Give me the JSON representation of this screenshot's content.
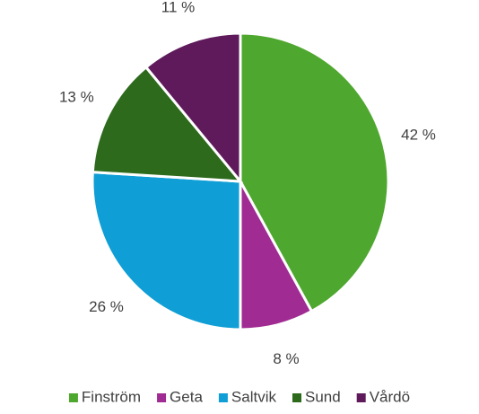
{
  "chart_data": {
    "type": "pie",
    "categories": [
      "Finström",
      "Geta",
      "Saltvik",
      "Sund",
      "Vårdö"
    ],
    "values": [
      42,
      8,
      26,
      13,
      11
    ],
    "value_labels": [
      "42 %",
      "8 %",
      "26 %",
      "13 %",
      "11 %"
    ],
    "colors": [
      "#4ea72e",
      "#a02b93",
      "#0f9ed5",
      "#2d6a1c",
      "#5e1a5b"
    ],
    "legend": "bottom"
  }
}
